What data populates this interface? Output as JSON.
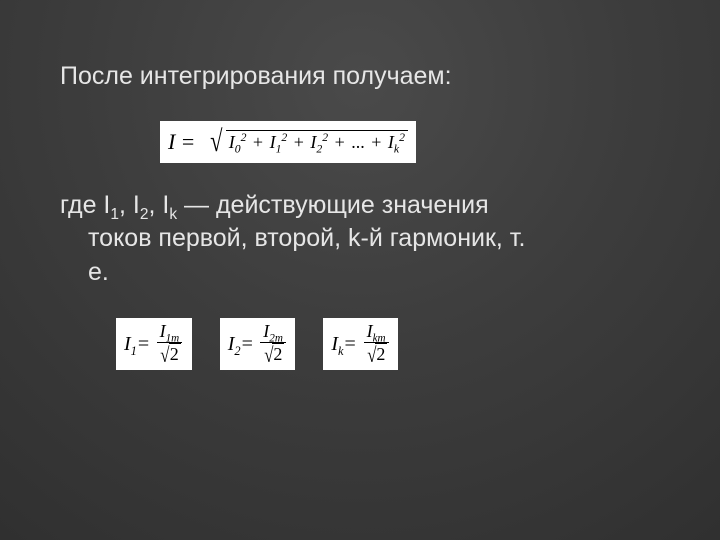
{
  "colors": {
    "slide_bg_center": "#4a4a4a",
    "slide_bg_edge": "#303030",
    "text": "#e6e6e6",
    "formula_bg": "#ffffff",
    "formula_fg": "#000000"
  },
  "typography": {
    "body_font": "Arial",
    "body_size_pt": 19,
    "formula_font": "Times New Roman Italic",
    "formula_size_pt": 16
  },
  "text": {
    "line1": "После интегрирования получаем:",
    "line2_part1": "где I",
    "line2_sub1": "1",
    "line2_sep1": ", I",
    "line2_sub2": "2",
    "line2_sep2": ", I",
    "line2_sub3": "k",
    "line2_part2": " — действующие значения",
    "line2_cont1": "токов первой, второй, k-й гармоник, т.",
    "line2_cont2": "е."
  },
  "main_formula": {
    "lhs": "I",
    "eq": "=",
    "terms": [
      {
        "base": "I",
        "sub": "0",
        "sup": "2"
      },
      {
        "base": "I",
        "sub": "1",
        "sup": "2"
      },
      {
        "base": "I",
        "sub": "2",
        "sup": "2"
      }
    ],
    "ellipsis": "...",
    "last_term": {
      "base": "I",
      "sub": "k",
      "sup": "2"
    }
  },
  "fraction_formulas": [
    {
      "lhs_base": "I",
      "lhs_sub": "1",
      "num_base": "I",
      "num_sub": "1m",
      "den_sqrt": "2"
    },
    {
      "lhs_base": "I",
      "lhs_sub": "2",
      "num_base": "I",
      "num_sub": "2m",
      "den_sqrt": "2"
    },
    {
      "lhs_base": "I",
      "lhs_sub": "k",
      "num_base": "I",
      "num_sub": "km",
      "den_sqrt": "2"
    }
  ]
}
